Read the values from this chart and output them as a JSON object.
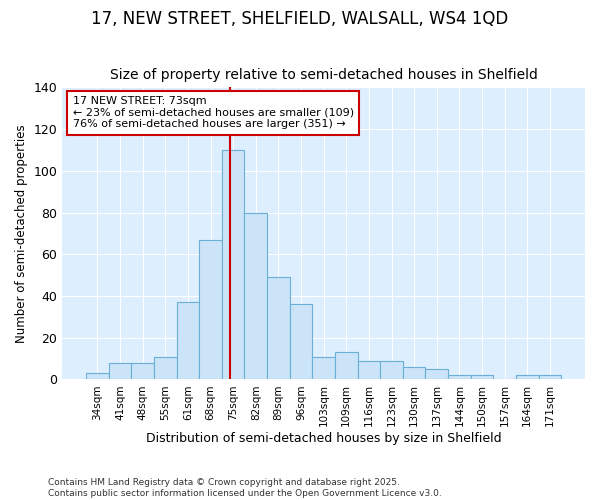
{
  "title": "17, NEW STREET, SHELFIELD, WALSALL, WS4 1QD",
  "subtitle": "Size of property relative to semi-detached houses in Shelfield",
  "xlabel": "Distribution of semi-detached houses by size in Shelfield",
  "ylabel": "Number of semi-detached properties",
  "bar_labels": [
    "34sqm",
    "41sqm",
    "48sqm",
    "55sqm",
    "61sqm",
    "68sqm",
    "75sqm",
    "82sqm",
    "89sqm",
    "96sqm",
    "103sqm",
    "109sqm",
    "116sqm",
    "123sqm",
    "130sqm",
    "137sqm",
    "144sqm",
    "150sqm",
    "157sqm",
    "164sqm",
    "171sqm"
  ],
  "bar_values": [
    3,
    8,
    8,
    11,
    37,
    67,
    110,
    80,
    49,
    36,
    11,
    13,
    9,
    9,
    6,
    5,
    2,
    2,
    0,
    2,
    2
  ],
  "bar_color": "#cce4f7",
  "bar_edge_color": "#6aafd6",
  "property_label": "17 NEW STREET: 73sqm",
  "annotation_line1": "← 23% of semi-detached houses are smaller (109)",
  "annotation_line2": "76% of semi-detached houses are larger (351) →",
  "vline_color": "#cc0000",
  "annotation_box_color": "#ffffff",
  "annotation_box_edge_color": "#cc0000",
  "ylim": [
    0,
    140
  ],
  "yticks": [
    0,
    20,
    40,
    60,
    80,
    100,
    120,
    140
  ],
  "fig_bg_color": "#ffffff",
  "plot_bg_color": "#ddeeff",
  "grid_color": "#ffffff",
  "footer": "Contains HM Land Registry data © Crown copyright and database right 2025.\nContains public sector information licensed under the Open Government Licence v3.0.",
  "title_fontsize": 12,
  "subtitle_fontsize": 10,
  "bar_width": 1.0,
  "vline_x": 5.857
}
